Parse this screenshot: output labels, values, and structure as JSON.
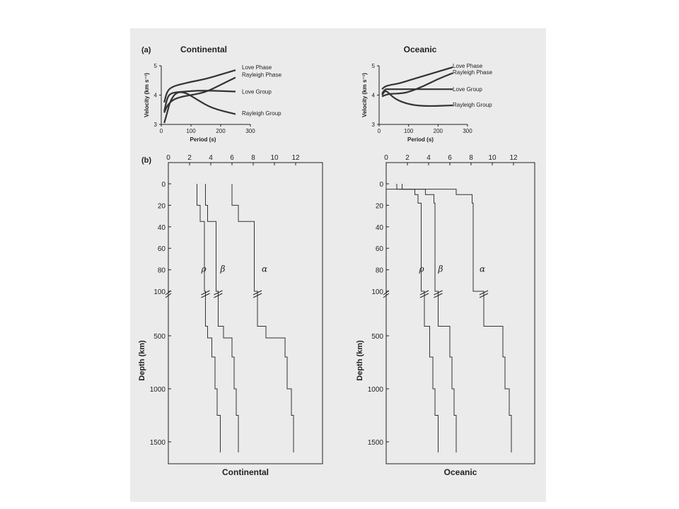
{
  "figure": {
    "panel_a_label": "(a)",
    "panel_b_label": "(b)"
  },
  "chart_data": [
    {
      "type": "line",
      "panel": "(a)",
      "title": "Continental",
      "xlabel": "Period (s)",
      "ylabel": "Velocity (km s⁻¹)",
      "xlim": [
        0,
        300
      ],
      "ylim": [
        3,
        5
      ],
      "xticks": [
        0,
        100,
        200,
        300
      ],
      "yticks": [
        3,
        4,
        5
      ],
      "series": [
        {
          "name": "Love Phase",
          "x": [
            10,
            20,
            40,
            70,
            100,
            150,
            200,
            250
          ],
          "y": [
            3.75,
            4.15,
            4.3,
            4.38,
            4.45,
            4.55,
            4.7,
            4.85
          ]
        },
        {
          "name": "Rayleigh Phase",
          "x": [
            10,
            20,
            40,
            70,
            100,
            150,
            200,
            250
          ],
          "y": [
            3.4,
            3.65,
            3.85,
            3.95,
            4.0,
            4.1,
            4.35,
            4.6
          ]
        },
        {
          "name": "Love Group",
          "x": [
            10,
            20,
            30,
            50,
            80,
            120,
            170,
            250
          ],
          "y": [
            3.45,
            3.9,
            4.05,
            4.1,
            4.12,
            4.15,
            4.15,
            4.12
          ]
        },
        {
          "name": "Rayleigh Group",
          "x": [
            10,
            20,
            30,
            50,
            80,
            120,
            170,
            250
          ],
          "y": [
            3.05,
            3.4,
            3.8,
            4.1,
            4.1,
            3.85,
            3.55,
            3.35
          ]
        }
      ]
    },
    {
      "type": "line",
      "panel": "(a)",
      "title": "Oceanic",
      "xlabel": "Period (s)",
      "ylabel": "Velocity (km s⁻¹)",
      "xlim": [
        0,
        300
      ],
      "ylim": [
        3,
        5
      ],
      "xticks": [
        0,
        100,
        200,
        300
      ],
      "yticks": [
        3,
        4,
        5
      ],
      "series": [
        {
          "name": "Love Phase",
          "x": [
            10,
            20,
            40,
            70,
            100,
            150,
            200,
            250
          ],
          "y": [
            4.2,
            4.3,
            4.35,
            4.4,
            4.5,
            4.65,
            4.8,
            4.95
          ]
        },
        {
          "name": "Rayleigh Phase",
          "x": [
            10,
            20,
            40,
            70,
            100,
            150,
            200,
            250
          ],
          "y": [
            3.95,
            4.0,
            4.05,
            4.05,
            4.1,
            4.3,
            4.55,
            4.75
          ]
        },
        {
          "name": "Love Group",
          "x": [
            10,
            20,
            30,
            50,
            80,
            120,
            170,
            250
          ],
          "y": [
            4.05,
            4.2,
            4.2,
            4.2,
            4.2,
            4.2,
            4.2,
            4.2
          ]
        },
        {
          "name": "Rayleigh Group",
          "x": [
            10,
            20,
            30,
            50,
            80,
            120,
            170,
            250
          ],
          "y": [
            4.0,
            4.15,
            4.1,
            3.9,
            3.75,
            3.65,
            3.62,
            3.65
          ]
        }
      ]
    },
    {
      "type": "line",
      "panel": "(b)",
      "title": "Continental",
      "ylabel": "Depth (km)",
      "xlim": [
        0,
        14
      ],
      "xticks": [
        0,
        2,
        4,
        6,
        8,
        10,
        12
      ],
      "y_upper_ticks": [
        0,
        20,
        40,
        60,
        80,
        100
      ],
      "y_lower_ticks": [
        500,
        1000,
        1500
      ],
      "series": [
        {
          "name": "ρ",
          "x": [
            2.7,
            2.7,
            3.0,
            3.0,
            3.4,
            3.4,
            3.5,
            3.5,
            3.7,
            3.7,
            4.1,
            4.1,
            4.4,
            4.4,
            4.6,
            4.6,
            4.9,
            4.9
          ],
          "y": [
            0,
            20,
            20,
            35,
            35,
            100,
            100,
            380,
            380,
            520,
            520,
            700,
            700,
            1000,
            1000,
            1250,
            1250,
            1550
          ]
        },
        {
          "name": "β",
          "x": [
            3.5,
            3.5,
            3.7,
            3.7,
            4.5,
            4.5,
            4.7,
            4.7,
            5.2,
            5.2,
            6.0,
            6.0,
            6.2,
            6.2,
            6.4,
            6.4,
            6.6,
            6.6
          ],
          "y": [
            0,
            20,
            20,
            35,
            35,
            100,
            100,
            380,
            380,
            520,
            520,
            700,
            700,
            1000,
            1000,
            1250,
            1250,
            1550
          ]
        },
        {
          "name": "α",
          "x": [
            6.0,
            6.0,
            6.6,
            6.6,
            8.1,
            8.1,
            8.4,
            8.4,
            9.2,
            9.2,
            11.0,
            11.0,
            11.2,
            11.2,
            11.6,
            11.6,
            11.8,
            11.8
          ],
          "y": [
            0,
            20,
            20,
            35,
            35,
            100,
            100,
            380,
            380,
            520,
            520,
            700,
            700,
            1000,
            1000,
            1250,
            1250,
            1550
          ]
        }
      ]
    },
    {
      "type": "line",
      "panel": "(b)",
      "title": "Oceanic",
      "ylabel": "Depth (km)",
      "xlim": [
        0,
        14
      ],
      "xticks": [
        0,
        2,
        4,
        6,
        8,
        10,
        12
      ],
      "y_upper_ticks": [
        0,
        20,
        40,
        60,
        80,
        100
      ],
      "y_lower_ticks": [
        500,
        1000,
        1500
      ],
      "series": [
        {
          "name": "ρ",
          "x": [
            1.0,
            1.0,
            2.7,
            2.7,
            3.0,
            3.0,
            3.3,
            3.3,
            3.6,
            3.6,
            4.1,
            4.1,
            4.4,
            4.4,
            4.6,
            4.6,
            4.9,
            4.9
          ],
          "y": [
            0,
            5,
            5,
            10,
            10,
            18,
            18,
            100,
            100,
            380,
            380,
            700,
            700,
            1000,
            1000,
            1250,
            1250,
            1550
          ]
        },
        {
          "name": "β",
          "x": [
            0.0,
            0.0,
            3.7,
            3.7,
            4.5,
            4.5,
            4.6,
            4.6,
            4.9,
            4.9,
            6.0,
            6.0,
            6.2,
            6.2,
            6.4,
            6.4,
            6.6,
            6.6
          ],
          "y": [
            0,
            5,
            5,
            10,
            10,
            18,
            18,
            100,
            100,
            380,
            380,
            700,
            700,
            1000,
            1000,
            1250,
            1250,
            1550
          ]
        },
        {
          "name": "α",
          "x": [
            1.5,
            1.5,
            6.6,
            6.6,
            8.1,
            8.1,
            8.2,
            8.2,
            9.2,
            9.2,
            11.0,
            11.0,
            11.2,
            11.2,
            11.6,
            11.6,
            11.8,
            11.8
          ],
          "y": [
            0,
            5,
            5,
            10,
            10,
            18,
            18,
            100,
            100,
            380,
            380,
            700,
            700,
            1000,
            1000,
            1250,
            1250,
            1550
          ]
        }
      ]
    }
  ]
}
